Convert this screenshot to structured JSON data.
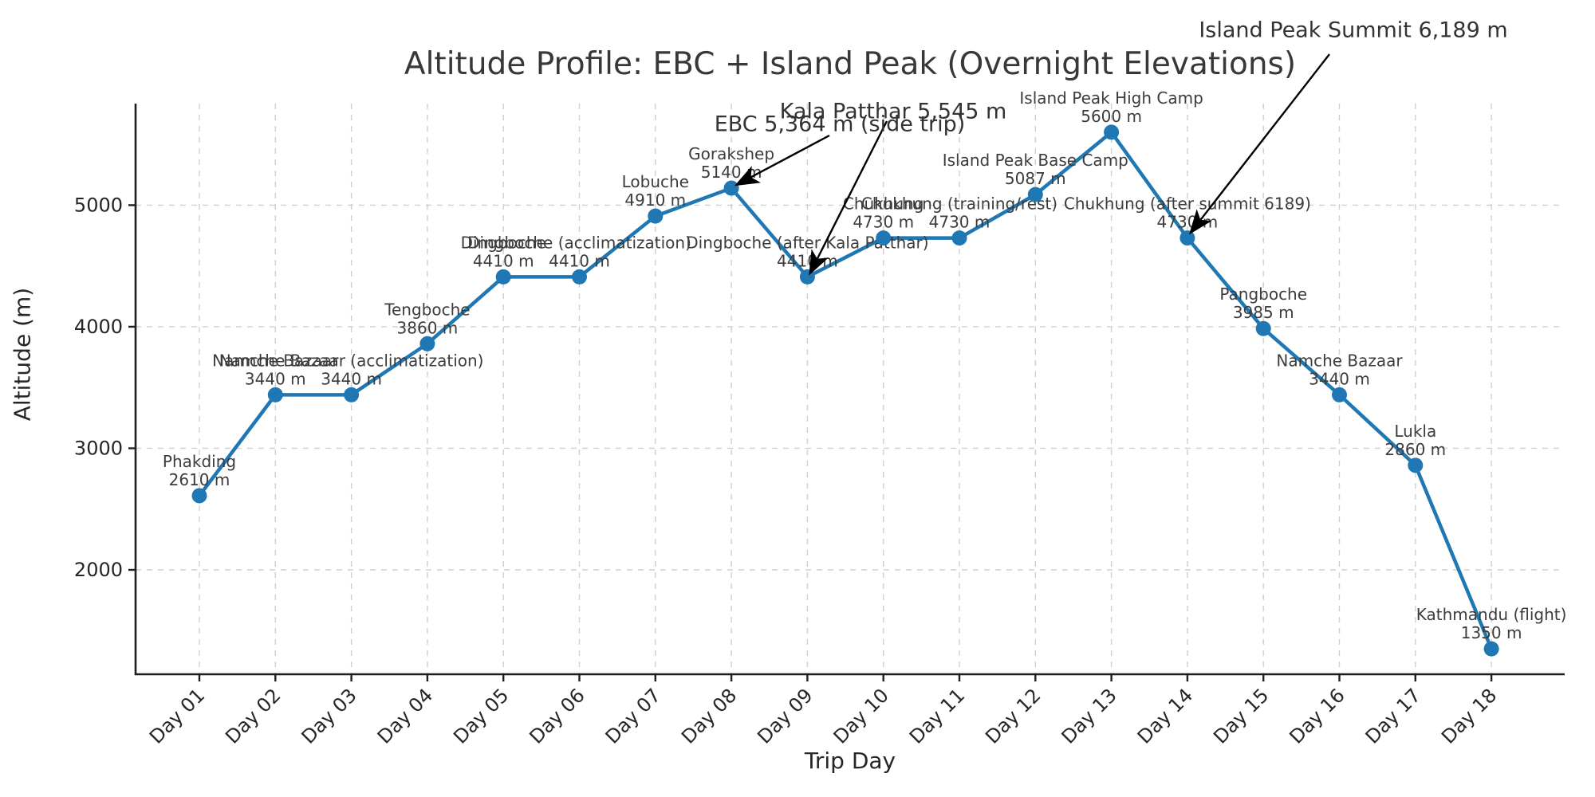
{
  "chart_data": {
    "type": "line",
    "title": "Altitude Profile: EBC + Island Peak (Overnight Elevations)",
    "xlabel": "Trip Day",
    "ylabel": "Altitude (m)",
    "unit": "m",
    "line_color": "#1f77b4",
    "grid": "dashed, on",
    "legend": "none",
    "y_ticks": [
      2000,
      3000,
      4000,
      5000
    ],
    "ylim": [
      1140,
      5835
    ],
    "x_tick_labels": [
      "Day 01",
      "Day 02",
      "Day 03",
      "Day 04",
      "Day 05",
      "Day 06",
      "Day 07",
      "Day 08",
      "Day 09",
      "Day 10",
      "Day 11",
      "Day 12",
      "Day 13",
      "Day 14",
      "Day 15",
      "Day 16",
      "Day 17",
      "Day 18"
    ],
    "points": [
      {
        "day": 1,
        "label": "Phakding",
        "altitude": 2610
      },
      {
        "day": 2,
        "label": "Namche Bazaar",
        "altitude": 3440
      },
      {
        "day": 3,
        "label": "Namche Bazaar (acclimatization)",
        "altitude": 3440
      },
      {
        "day": 4,
        "label": "Tengboche",
        "altitude": 3860
      },
      {
        "day": 5,
        "label": "Dingboche",
        "altitude": 4410
      },
      {
        "day": 6,
        "label": "Dingboche (acclimatization)",
        "altitude": 4410
      },
      {
        "day": 7,
        "label": "Lobuche",
        "altitude": 4910
      },
      {
        "day": 8,
        "label": "Gorakshep",
        "altitude": 5140
      },
      {
        "day": 9,
        "label": "Dingboche (after Kala Patthar)",
        "altitude": 4410
      },
      {
        "day": 10,
        "label": "Chukhung",
        "altitude": 4730
      },
      {
        "day": 11,
        "label": "Chukhung (training/rest)",
        "altitude": 4730
      },
      {
        "day": 12,
        "label": "Island Peak Base Camp",
        "altitude": 5087
      },
      {
        "day": 13,
        "label": "Island Peak High Camp",
        "altitude": 5600
      },
      {
        "day": 14,
        "label": "Chukhung (after summit 6189)",
        "altitude": 4730
      },
      {
        "day": 15,
        "label": "Pangboche",
        "altitude": 3985
      },
      {
        "day": 16,
        "label": "Namche Bazaar",
        "altitude": 3440
      },
      {
        "day": 17,
        "label": "Lukla",
        "altitude": 2860
      },
      {
        "day": 18,
        "label": "Kathmandu (flight)",
        "altitude": 1350
      }
    ],
    "annotations": [
      {
        "text": "Island Peak Summit 6,189 m",
        "target_day": 14,
        "target_altitude": 4730
      },
      {
        "text": "Kala Patthar 5,545 m",
        "target_day": 9,
        "target_altitude": 4410
      },
      {
        "text": "EBC 5,364 m (side trip)",
        "target_day": 8,
        "target_altitude": 5140
      }
    ]
  }
}
